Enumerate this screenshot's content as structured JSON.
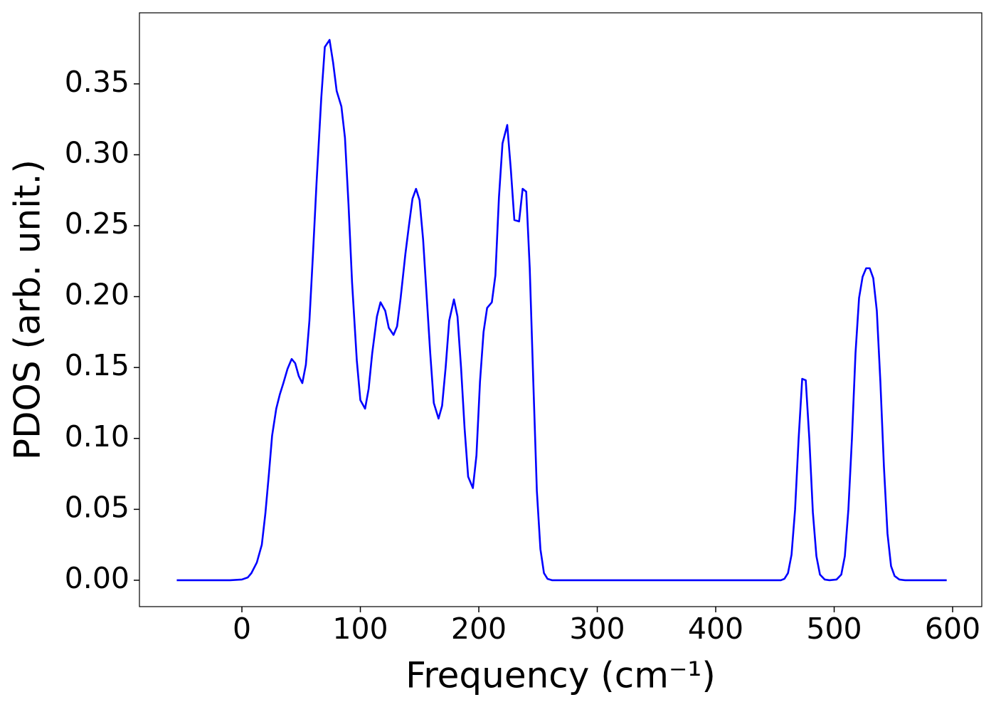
{
  "chart_data": {
    "type": "line",
    "xlabel": "Frequency (cm⁻¹)",
    "ylabel": "PDOS (arb. unit.)",
    "xlim": [
      -86.5,
      624.6
    ],
    "ylim": [
      -0.0186,
      0.4001
    ],
    "xticks": [
      0,
      100,
      200,
      300,
      400,
      500,
      600
    ],
    "yticks": [
      {
        "value": 0,
        "label": "0.00"
      },
      0.05,
      {
        "value": 0.1,
        "label": "0.10"
      },
      0.15,
      {
        "value": 0.2,
        "label": "0.20"
      },
      0.25,
      {
        "value": 0.3,
        "label": "0.30"
      },
      0.35
    ],
    "grid": false,
    "x": [
      -55,
      -10,
      0,
      5,
      8,
      12.6,
      16.8,
      19.8,
      22.8,
      25.5,
      29,
      32,
      35,
      38.5,
      42,
      45,
      48,
      51,
      54,
      57,
      60,
      63,
      67,
      70,
      74,
      77,
      80,
      84,
      87,
      90,
      93,
      97,
      100,
      104,
      107,
      110,
      114,
      117,
      121,
      124,
      128,
      131,
      134,
      138,
      141,
      144,
      147,
      150,
      153,
      156,
      159,
      162,
      166,
      169,
      172,
      175,
      179,
      182,
      185,
      188,
      191,
      195,
      198,
      201,
      204,
      207,
      211,
      214,
      217,
      220,
      224,
      227,
      230,
      234,
      237,
      240,
      243,
      246,
      249,
      252,
      255,
      258,
      262,
      455,
      458,
      461,
      464,
      467,
      470,
      473,
      476,
      479,
      482,
      485,
      488,
      492,
      496,
      502,
      506,
      509,
      512,
      515,
      518,
      521,
      524,
      527,
      530,
      533,
      536,
      539,
      542,
      545,
      548,
      551,
      555,
      560,
      595
    ],
    "series": [
      {
        "name": "PDOS",
        "color": "#0000ff",
        "values": [
          0,
          0,
          0.0005,
          0.002,
          0.005,
          0.0125,
          0.025,
          0.047,
          0.075,
          0.102,
          0.121,
          0.131,
          0.139,
          0.149,
          0.156,
          0.153,
          0.144,
          0.139,
          0.152,
          0.183,
          0.23,
          0.28,
          0.34,
          0.376,
          0.381,
          0.365,
          0.345,
          0.334,
          0.312,
          0.265,
          0.21,
          0.155,
          0.127,
          0.121,
          0.135,
          0.16,
          0.186,
          0.196,
          0.19,
          0.178,
          0.173,
          0.179,
          0.199,
          0.23,
          0.25,
          0.269,
          0.276,
          0.268,
          0.24,
          0.2,
          0.16,
          0.125,
          0.114,
          0.123,
          0.15,
          0.183,
          0.198,
          0.186,
          0.15,
          0.107,
          0.073,
          0.065,
          0.088,
          0.14,
          0.175,
          0.192,
          0.196,
          0.215,
          0.27,
          0.308,
          0.321,
          0.29,
          0.254,
          0.253,
          0.276,
          0.274,
          0.22,
          0.14,
          0.063,
          0.022,
          0.005,
          0.001,
          0,
          0,
          0.001,
          0.005,
          0.018,
          0.05,
          0.1,
          0.142,
          0.141,
          0.1,
          0.048,
          0.017,
          0.004,
          0.0005,
          0,
          0.0005,
          0.004,
          0.017,
          0.05,
          0.1,
          0.16,
          0.199,
          0.214,
          0.22,
          0.22,
          0.213,
          0.19,
          0.14,
          0.08,
          0.033,
          0.01,
          0.003,
          0.0005,
          0,
          0
        ]
      }
    ]
  }
}
